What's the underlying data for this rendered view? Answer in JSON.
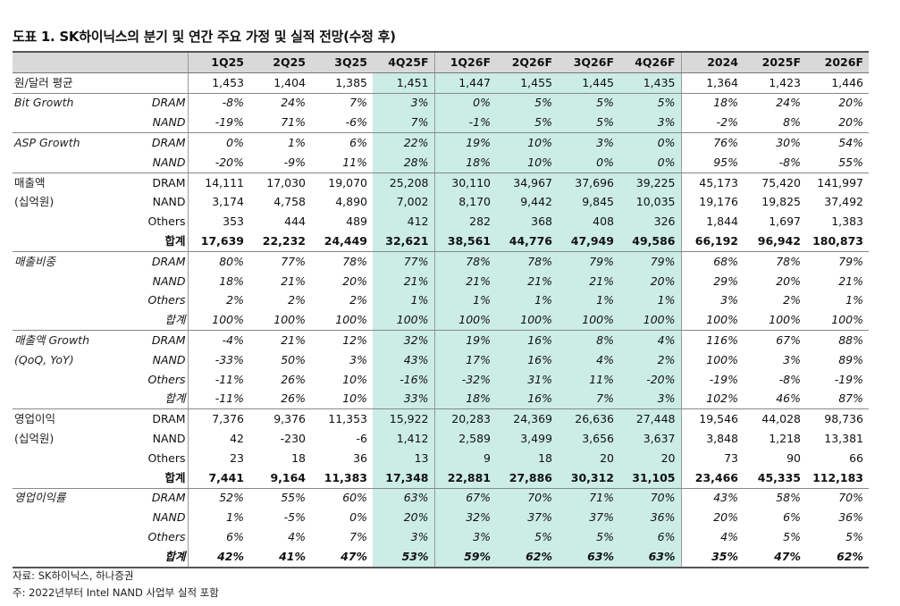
{
  "title": "도표 1. SK하이닉스의 분기 및 연간 주요 가정 및 실적 전망(수정 후)",
  "columns": [
    "1Q25",
    "2Q25",
    "3Q25",
    "4Q25F",
    "1Q26F",
    "2Q26F",
    "3Q26F",
    "4Q26F",
    "2024",
    "2025F",
    "2026F"
  ],
  "rows": [
    {
      "label": "원/달러 평균",
      "sub": "",
      "values": [
        "1,453",
        "1,404",
        "1,385",
        "1,451",
        "1,447",
        "1,455",
        "1,445",
        "1,435",
        "1,364",
        "1,423",
        "1,446"
      ],
      "style": "sep",
      "italic": false
    },
    {
      "label": "Bit Growth",
      "sub": "DRAM",
      "values": [
        "-8%",
        "24%",
        "7%",
        "3%",
        "0%",
        "5%",
        "5%",
        "5%",
        "18%",
        "24%",
        "20%"
      ],
      "style": "",
      "italic": true
    },
    {
      "label": "",
      "sub": "NAND",
      "values": [
        "-19%",
        "71%",
        "-6%",
        "7%",
        "-1%",
        "5%",
        "5%",
        "3%",
        "-2%",
        "8%",
        "20%"
      ],
      "style": "sep",
      "italic": true
    },
    {
      "label": "ASP Growth",
      "sub": "DRAM",
      "values": [
        "0%",
        "1%",
        "6%",
        "22%",
        "19%",
        "10%",
        "3%",
        "0%",
        "76%",
        "30%",
        "54%"
      ],
      "style": "",
      "italic": true
    },
    {
      "label": "",
      "sub": "NAND",
      "values": [
        "-20%",
        "-9%",
        "11%",
        "28%",
        "18%",
        "10%",
        "0%",
        "0%",
        "95%",
        "-8%",
        "55%"
      ],
      "style": "sep",
      "italic": true
    },
    {
      "label": "매출액",
      "sub": "DRAM",
      "values": [
        "14,111",
        "17,030",
        "19,070",
        "25,208",
        "30,110",
        "34,967",
        "37,696",
        "39,225",
        "45,173",
        "75,420",
        "141,997"
      ],
      "style": "",
      "italic": false
    },
    {
      "label": "(십억원)",
      "sub": "NAND",
      "values": [
        "3,174",
        "4,758",
        "4,890",
        "7,002",
        "8,170",
        "9,442",
        "9,845",
        "10,035",
        "19,176",
        "19,825",
        "37,492"
      ],
      "style": "",
      "italic": false
    },
    {
      "label": "",
      "sub": "Others",
      "values": [
        "353",
        "444",
        "489",
        "412",
        "282",
        "368",
        "408",
        "326",
        "1,844",
        "1,697",
        "1,383"
      ],
      "style": "",
      "italic": false
    },
    {
      "label": "",
      "sub": "합계",
      "values": [
        "17,639",
        "22,232",
        "24,449",
        "32,621",
        "38,561",
        "44,776",
        "47,949",
        "49,586",
        "66,192",
        "96,942",
        "180,873"
      ],
      "style": "total sep",
      "italic": false
    },
    {
      "label": "매출비중",
      "sub": "DRAM",
      "values": [
        "80%",
        "77%",
        "78%",
        "77%",
        "78%",
        "78%",
        "79%",
        "79%",
        "68%",
        "78%",
        "79%"
      ],
      "style": "",
      "italic": true
    },
    {
      "label": "",
      "sub": "NAND",
      "values": [
        "18%",
        "21%",
        "20%",
        "21%",
        "21%",
        "21%",
        "21%",
        "20%",
        "29%",
        "20%",
        "21%"
      ],
      "style": "",
      "italic": true
    },
    {
      "label": "",
      "sub": "Others",
      "values": [
        "2%",
        "2%",
        "2%",
        "1%",
        "1%",
        "1%",
        "1%",
        "1%",
        "3%",
        "2%",
        "1%"
      ],
      "style": "",
      "italic": true
    },
    {
      "label": "",
      "sub": "합계",
      "values": [
        "100%",
        "100%",
        "100%",
        "100%",
        "100%",
        "100%",
        "100%",
        "100%",
        "100%",
        "100%",
        "100%"
      ],
      "style": "sep",
      "italic": true
    },
    {
      "label": "매출액 Growth",
      "sub": "DRAM",
      "values": [
        "-4%",
        "21%",
        "12%",
        "32%",
        "19%",
        "16%",
        "8%",
        "4%",
        "116%",
        "67%",
        "88%"
      ],
      "style": "",
      "italic": true
    },
    {
      "label": "(QoQ, YoY)",
      "sub": "NAND",
      "values": [
        "-33%",
        "50%",
        "3%",
        "43%",
        "17%",
        "16%",
        "4%",
        "2%",
        "100%",
        "3%",
        "89%"
      ],
      "style": "",
      "italic": true
    },
    {
      "label": "",
      "sub": "Others",
      "values": [
        "-11%",
        "26%",
        "10%",
        "-16%",
        "-32%",
        "31%",
        "11%",
        "-20%",
        "-19%",
        "-8%",
        "-19%"
      ],
      "style": "",
      "italic": true
    },
    {
      "label": "",
      "sub": "합계",
      "values": [
        "-11%",
        "26%",
        "10%",
        "33%",
        "18%",
        "16%",
        "7%",
        "3%",
        "102%",
        "46%",
        "87%"
      ],
      "style": "sep",
      "italic": true
    },
    {
      "label": "영업이익",
      "sub": "DRAM",
      "values": [
        "7,376",
        "9,376",
        "11,353",
        "15,922",
        "20,283",
        "24,369",
        "26,636",
        "27,448",
        "19,546",
        "44,028",
        "98,736"
      ],
      "style": "",
      "italic": false
    },
    {
      "label": "(십억원)",
      "sub": "NAND",
      "values": [
        "42",
        "-230",
        "-6",
        "1,412",
        "2,589",
        "3,499",
        "3,656",
        "3,637",
        "3,848",
        "1,218",
        "13,381"
      ],
      "style": "",
      "italic": false
    },
    {
      "label": "",
      "sub": "Others",
      "values": [
        "23",
        "18",
        "36",
        "13",
        "9",
        "18",
        "20",
        "20",
        "73",
        "90",
        "66"
      ],
      "style": "",
      "italic": false
    },
    {
      "label": "",
      "sub": "합계",
      "values": [
        "7,441",
        "9,164",
        "11,383",
        "17,348",
        "22,881",
        "27,886",
        "30,312",
        "31,105",
        "23,466",
        "45,335",
        "112,183"
      ],
      "style": "total sep",
      "italic": false
    },
    {
      "label": "영업이익률",
      "sub": "DRAM",
      "values": [
        "52%",
        "55%",
        "60%",
        "63%",
        "67%",
        "70%",
        "71%",
        "70%",
        "43%",
        "58%",
        "70%"
      ],
      "style": "",
      "italic": true
    },
    {
      "label": "",
      "sub": "NAND",
      "values": [
        "1%",
        "-5%",
        "0%",
        "20%",
        "32%",
        "37%",
        "37%",
        "36%",
        "20%",
        "6%",
        "36%"
      ],
      "style": "",
      "italic": true
    },
    {
      "label": "",
      "sub": "Others",
      "values": [
        "6%",
        "4%",
        "7%",
        "3%",
        "3%",
        "5%",
        "5%",
        "6%",
        "4%",
        "5%",
        "5%"
      ],
      "style": "",
      "italic": true
    },
    {
      "label": "",
      "sub": "합계",
      "values": [
        "42%",
        "41%",
        "47%",
        "53%",
        "59%",
        "62%",
        "63%",
        "63%",
        "35%",
        "47%",
        "62%"
      ],
      "style": "total last",
      "italic": true
    }
  ],
  "source": "자료: SK하이닉스, 하나증권",
  "note": "주: 2022년부터 Intel NAND 사업부 실적 포함",
  "colors": {
    "header_bg": "#d9d9d9",
    "forecast_bg": "#ccece6"
  }
}
